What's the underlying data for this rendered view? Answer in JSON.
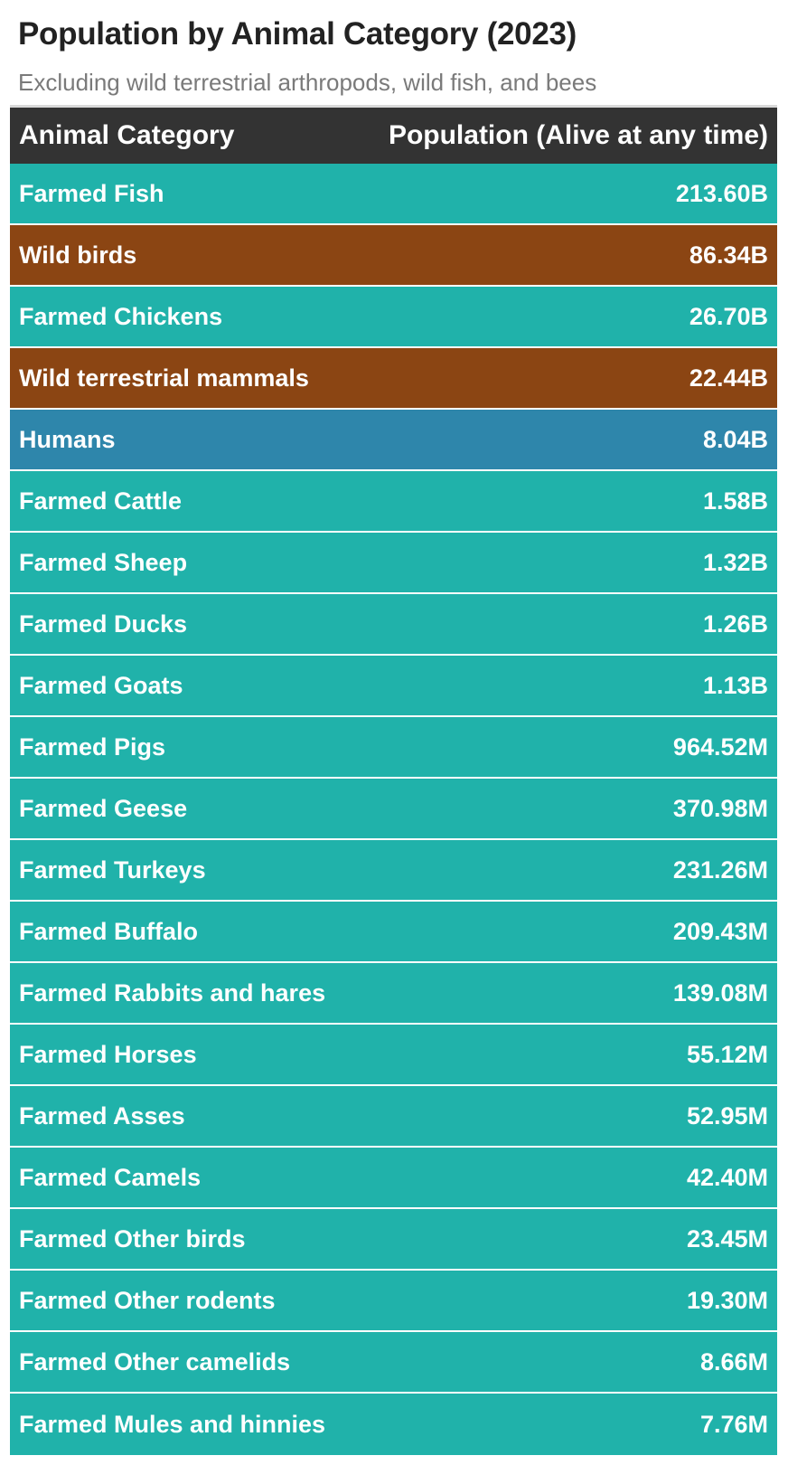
{
  "title": "Population by Animal Category (2023)",
  "subtitle": "Excluding wild terrestrial arthropods, wild fish, and bees",
  "colors": {
    "farmed": "#20b2aa",
    "wild": "#8b4513",
    "human": "#2e86ab",
    "header": "#333333"
  },
  "chart_data": {
    "type": "table",
    "title": "Population by Animal Category (2023)",
    "subtitle": "Excluding wild terrestrial arthropods, wild fish, and bees",
    "columns": [
      "Animal Category",
      "Population (Alive at any time)"
    ],
    "rows": [
      {
        "category": "Farmed Fish",
        "population": "213.60B",
        "group": "farmed"
      },
      {
        "category": "Wild birds",
        "population": "86.34B",
        "group": "wild"
      },
      {
        "category": "Farmed Chickens",
        "population": "26.70B",
        "group": "farmed"
      },
      {
        "category": "Wild terrestrial mammals",
        "population": "22.44B",
        "group": "wild"
      },
      {
        "category": "Humans",
        "population": "8.04B",
        "group": "human"
      },
      {
        "category": "Farmed Cattle",
        "population": "1.58B",
        "group": "farmed"
      },
      {
        "category": "Farmed Sheep",
        "population": "1.32B",
        "group": "farmed"
      },
      {
        "category": "Farmed Ducks",
        "population": "1.26B",
        "group": "farmed"
      },
      {
        "category": "Farmed Goats",
        "population": "1.13B",
        "group": "farmed"
      },
      {
        "category": "Farmed Pigs",
        "population": "964.52M",
        "group": "farmed"
      },
      {
        "category": "Farmed Geese",
        "population": "370.98M",
        "group": "farmed"
      },
      {
        "category": "Farmed Turkeys",
        "population": "231.26M",
        "group": "farmed"
      },
      {
        "category": "Farmed Buffalo",
        "population": "209.43M",
        "group": "farmed"
      },
      {
        "category": "Farmed Rabbits and hares",
        "population": "139.08M",
        "group": "farmed"
      },
      {
        "category": "Farmed Horses",
        "population": "55.12M",
        "group": "farmed"
      },
      {
        "category": "Farmed Asses",
        "population": "52.95M",
        "group": "farmed"
      },
      {
        "category": "Farmed Camels",
        "population": "42.40M",
        "group": "farmed"
      },
      {
        "category": "Farmed Other birds",
        "population": "23.45M",
        "group": "farmed"
      },
      {
        "category": "Farmed Other rodents",
        "population": "19.30M",
        "group": "farmed"
      },
      {
        "category": "Farmed Other camelids",
        "population": "8.66M",
        "group": "farmed"
      },
      {
        "category": "Farmed Mules and hinnies",
        "population": "7.76M",
        "group": "farmed"
      }
    ]
  }
}
